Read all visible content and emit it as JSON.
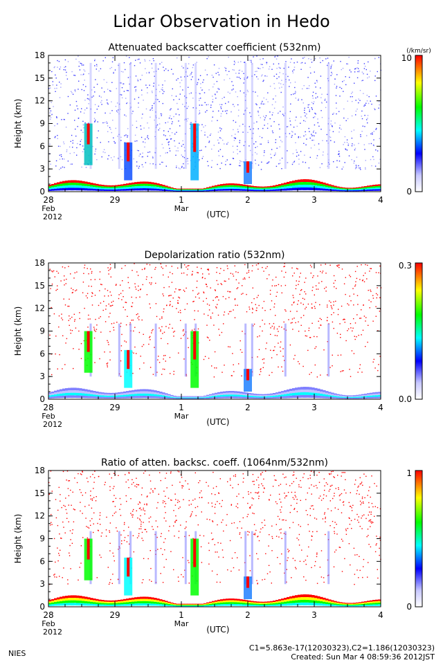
{
  "page": {
    "title": "Lidar Observation in Hedo",
    "footer_left": "NIES",
    "footer_line1": "C1=5.863e-17(12030323),C2=1.186(12030323)",
    "footer_line2": "Created: Sun Mar  4 08:59:36 2012JST"
  },
  "colors": {
    "dark_blue": "#0000ff",
    "cyan": "#00ffff",
    "green": "#00ff00",
    "yellow": "#ffff00",
    "red": "#ff0000"
  },
  "chart_data": [
    {
      "type": "heatmap",
      "title": "Attenuated backscatter coefficient (532nm)",
      "ylabel": "Height (km)",
      "ylim": [
        0,
        18
      ],
      "y_ticks": [
        "0",
        "3",
        "6",
        "9",
        "12",
        "15",
        "18"
      ],
      "x_ticks": [
        {
          "top": "28",
          "sub1": "Feb",
          "sub2": "2012"
        },
        {
          "top": "29",
          "sub1": "",
          "sub2": ""
        },
        {
          "top": "1",
          "sub1": "Mar",
          "sub2": ""
        },
        {
          "top": "2",
          "sub1": "",
          "sub2": ""
        },
        {
          "top": "3",
          "sub1": "",
          "sub2": ""
        },
        {
          "top": "4",
          "sub1": "",
          "sub2": ""
        }
      ],
      "x_unit": "(UTC)",
      "colorbar_max": "10",
      "colorbar_min": "0",
      "colorbar_unit": "(/km/sr)",
      "cloud_days": [
        0.6,
        1.2,
        2.0,
        2.2,
        3.0,
        3.5
      ],
      "boundary_layer_km": [
        1.0,
        1.2,
        1.4,
        0.8,
        1.5,
        0.6,
        1.3
      ]
    },
    {
      "type": "heatmap",
      "title": "Depolarization ratio (532nm)",
      "ylabel": "Height (km)",
      "ylim": [
        0,
        18
      ],
      "y_ticks": [
        "0",
        "3",
        "6",
        "9",
        "12",
        "15",
        "18"
      ],
      "x_ticks": [
        {
          "top": "28",
          "sub1": "Feb",
          "sub2": "2012"
        },
        {
          "top": "29",
          "sub1": "",
          "sub2": ""
        },
        {
          "top": "1",
          "sub1": "Mar",
          "sub2": ""
        },
        {
          "top": "2",
          "sub1": "",
          "sub2": ""
        },
        {
          "top": "3",
          "sub1": "",
          "sub2": ""
        },
        {
          "top": "4",
          "sub1": "",
          "sub2": ""
        }
      ],
      "x_unit": "(UTC)",
      "colorbar_max": "0.3",
      "colorbar_min": "0.0",
      "colorbar_unit": ""
    },
    {
      "type": "heatmap",
      "title": "Ratio of atten. backsc. coeff. (1064nm/532nm)",
      "ylabel": "Height (km)",
      "ylim": [
        0,
        18
      ],
      "y_ticks": [
        "0",
        "3",
        "6",
        "9",
        "12",
        "15",
        "18"
      ],
      "x_ticks": [
        {
          "top": "28",
          "sub1": "Feb",
          "sub2": "2012"
        },
        {
          "top": "29",
          "sub1": "",
          "sub2": ""
        },
        {
          "top": "1",
          "sub1": "Mar",
          "sub2": ""
        },
        {
          "top": "2",
          "sub1": "",
          "sub2": ""
        },
        {
          "top": "3",
          "sub1": "",
          "sub2": ""
        },
        {
          "top": "4",
          "sub1": "",
          "sub2": ""
        }
      ],
      "x_unit": "(UTC)",
      "colorbar_max": "1",
      "colorbar_min": "0",
      "colorbar_unit": ""
    }
  ]
}
